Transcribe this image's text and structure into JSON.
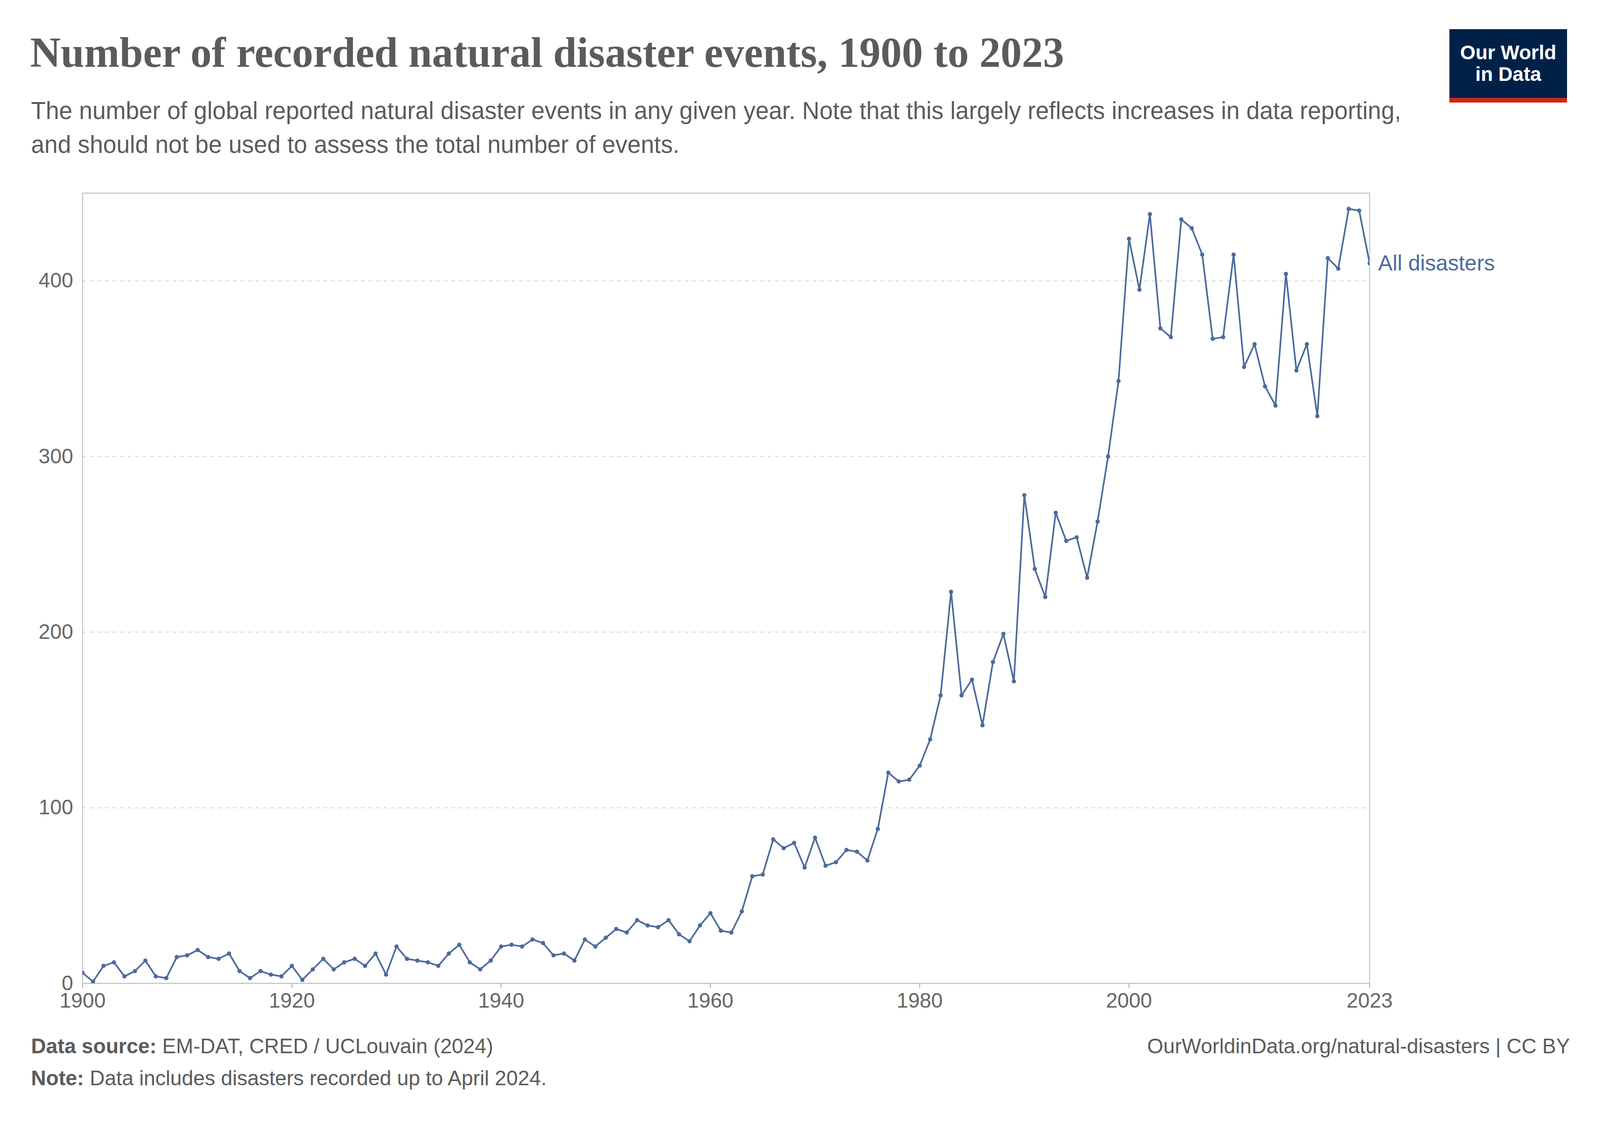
{
  "chart_data": {
    "type": "line",
    "title": "Number of recorded natural disaster events, 1900 to 2023",
    "subtitle": "The number of global reported natural disaster events in any given year. Note that this largely reflects increases in data reporting, and should not be used to assess the total number of events.",
    "logo": [
      "Our World",
      "in Data"
    ],
    "source": {
      "label": "Data source:",
      "text": "EM-DAT, CRED / UCLouvain (2024)"
    },
    "license": "OurWorldinData.org/natural-disasters | CC BY",
    "note": {
      "label": "Note:",
      "text": "Data includes disasters recorded up to April 2024."
    },
    "x": [
      1900,
      1901,
      1902,
      1903,
      1904,
      1905,
      1906,
      1907,
      1908,
      1909,
      1910,
      1911,
      1912,
      1913,
      1914,
      1915,
      1916,
      1917,
      1918,
      1919,
      1920,
      1921,
      1922,
      1923,
      1924,
      1925,
      1926,
      1927,
      1928,
      1929,
      1930,
      1931,
      1932,
      1933,
      1934,
      1935,
      1936,
      1937,
      1938,
      1939,
      1940,
      1941,
      1942,
      1943,
      1944,
      1945,
      1946,
      1947,
      1948,
      1949,
      1950,
      1951,
      1952,
      1953,
      1954,
      1955,
      1956,
      1957,
      1958,
      1959,
      1960,
      1961,
      1962,
      1963,
      1964,
      1965,
      1966,
      1967,
      1968,
      1969,
      1970,
      1971,
      1972,
      1973,
      1974,
      1975,
      1976,
      1977,
      1978,
      1979,
      1980,
      1981,
      1982,
      1983,
      1984,
      1985,
      1986,
      1987,
      1988,
      1989,
      1990,
      1991,
      1992,
      1993,
      1994,
      1995,
      1996,
      1997,
      1998,
      1999,
      2000,
      2001,
      2002,
      2003,
      2004,
      2005,
      2006,
      2007,
      2008,
      2009,
      2010,
      2011,
      2012,
      2013,
      2014,
      2015,
      2016,
      2017,
      2018,
      2019,
      2020,
      2021,
      2022,
      2023
    ],
    "series": [
      {
        "name": "All disasters",
        "color": "#4c6a9c",
        "marker": "circle",
        "line_style": "solid",
        "values": [
          6,
          1,
          10,
          12,
          4,
          7,
          13,
          4,
          3,
          15,
          16,
          19,
          15,
          14,
          17,
          7,
          3,
          7,
          5,
          4,
          10,
          2,
          8,
          14,
          8,
          12,
          14,
          10,
          17,
          5,
          21,
          14,
          13,
          12,
          10,
          17,
          22,
          12,
          8,
          13,
          21,
          22,
          21,
          25,
          23,
          16,
          17,
          13,
          25,
          21,
          26,
          31,
          29,
          36,
          33,
          32,
          36,
          28,
          24,
          33,
          40,
          30,
          29,
          41,
          61,
          62,
          82,
          77,
          80,
          66,
          83,
          67,
          69,
          76,
          75,
          70,
          88,
          120,
          115,
          116,
          124,
          139,
          164,
          223,
          164,
          173,
          147,
          183,
          199,
          172,
          278,
          236,
          220,
          268,
          252,
          254,
          231,
          263,
          300,
          343,
          424,
          395,
          438,
          373,
          368,
          435,
          430,
          415,
          367,
          368,
          415,
          351,
          364,
          340,
          329,
          404,
          349,
          364,
          323,
          413,
          407,
          441,
          440,
          410
        ]
      }
    ],
    "xlim": [
      1900,
      2023
    ],
    "xticks": [
      1900,
      1920,
      1940,
      1960,
      1980,
      2000,
      2023
    ],
    "ylim": [
      0,
      450
    ],
    "yticks": [
      0,
      100,
      200,
      300,
      400
    ],
    "grid": true
  }
}
